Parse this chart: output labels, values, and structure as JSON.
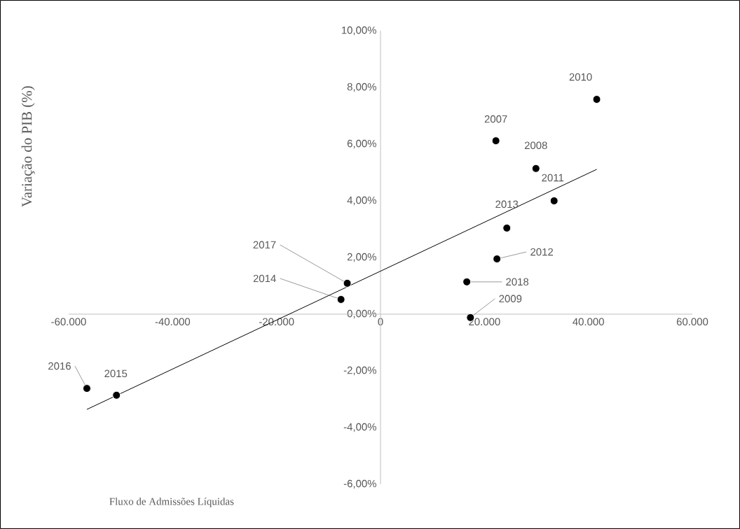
{
  "chart_data": {
    "type": "scatter",
    "xlabel": "Fluxo de Admissões Líquidas",
    "ylabel": "Variação do PIB  (%)",
    "xlim": [
      -60000,
      60000
    ],
    "ylim": [
      -6,
      10
    ],
    "xticks": [
      {
        "value": -60000,
        "label": "-60.000"
      },
      {
        "value": -40000,
        "label": "-40.000"
      },
      {
        "value": -20000,
        "label": "-20.000"
      },
      {
        "value": 0,
        "label": "0"
      },
      {
        "value": 20000,
        "label": "20.000"
      },
      {
        "value": 40000,
        "label": "40.000"
      },
      {
        "value": 60000,
        "label": "60.000"
      }
    ],
    "yticks": [
      {
        "value": -6,
        "label": "-6,00%"
      },
      {
        "value": -4,
        "label": "-4,00%"
      },
      {
        "value": -2,
        "label": "-2,00%"
      },
      {
        "value": 0,
        "label": "0,00%"
      },
      {
        "value": 2,
        "label": "2,00%"
      },
      {
        "value": 4,
        "label": "4,00%"
      },
      {
        "value": 6,
        "label": "6,00%"
      },
      {
        "value": 8,
        "label": "8,00%"
      },
      {
        "value": 10,
        "label": "10,00%"
      }
    ],
    "series": [
      {
        "marker": "circle",
        "color": "#000000",
        "x": [
          41600,
          22200,
          29900,
          33400,
          24300,
          22400,
          16600,
          17300,
          -6400,
          -7600,
          -56500,
          -50800
        ],
        "values": [
          7.58,
          6.12,
          5.14,
          4.0,
          3.04,
          1.95,
          1.14,
          -0.12,
          1.09,
          0.52,
          -2.62,
          -2.86
        ]
      },
      {
        "type": "line",
        "marker": "none",
        "color": "#000000",
        "x": [
          -56500,
          41600
        ],
        "values": [
          -3.36,
          5.11
        ]
      }
    ],
    "annotations": [
      {
        "text": "2010",
        "x": 41600,
        "y": 7.58
      },
      {
        "text": "2007",
        "x": 22200,
        "y": 6.12
      },
      {
        "text": "2008",
        "x": 29900,
        "y": 5.14
      },
      {
        "text": "2011",
        "x": 33400,
        "y": 4.0
      },
      {
        "text": "2013",
        "x": 24300,
        "y": 3.04
      },
      {
        "text": "2012",
        "x": 22400,
        "y": 1.95
      },
      {
        "text": "2018",
        "x": 16600,
        "y": 1.14
      },
      {
        "text": "2009",
        "x": 17300,
        "y": -0.12
      },
      {
        "text": "2017",
        "x": -6400,
        "y": 1.09
      },
      {
        "text": "2014",
        "x": -7600,
        "y": 0.52
      },
      {
        "text": "2016",
        "x": -56500,
        "y": -2.62
      },
      {
        "text": "2015",
        "x": -50800,
        "y": -2.86
      }
    ]
  }
}
